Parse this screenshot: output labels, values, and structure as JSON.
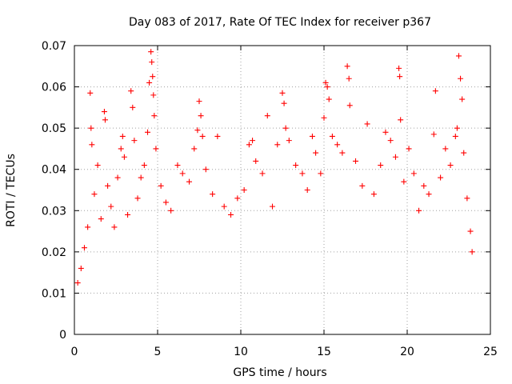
{
  "chart_data": {
    "type": "scatter",
    "title": "Day 083 of 2017, Rate Of TEC Index for receiver p367",
    "xlabel": "GPS time / hours",
    "ylabel": "ROTI / TECUs",
    "xlim": [
      0,
      25
    ],
    "ylim": [
      0,
      0.07
    ],
    "xticks": [
      "0",
      "5",
      "10",
      "15",
      "20",
      "25"
    ],
    "yticks": [
      "0",
      "0.01",
      "0.02",
      "0.03",
      "0.04",
      "0.05",
      "0.06",
      "0.07"
    ],
    "grid": true,
    "marker": "+",
    "color": "#ff0000",
    "series": [
      {
        "points": [
          [
            0.2,
            0.0125
          ],
          [
            0.4,
            0.016
          ],
          [
            0.6,
            0.021
          ],
          [
            0.8,
            0.026
          ],
          [
            0.95,
            0.0585
          ],
          [
            1.0,
            0.05
          ],
          [
            1.05,
            0.046
          ],
          [
            1.2,
            0.034
          ],
          [
            1.4,
            0.041
          ],
          [
            1.6,
            0.028
          ],
          [
            1.8,
            0.054
          ],
          [
            1.85,
            0.052
          ],
          [
            2.0,
            0.036
          ],
          [
            2.2,
            0.031
          ],
          [
            2.4,
            0.026
          ],
          [
            2.6,
            0.038
          ],
          [
            2.8,
            0.045
          ],
          [
            2.9,
            0.048
          ],
          [
            3.0,
            0.043
          ],
          [
            3.2,
            0.029
          ],
          [
            3.4,
            0.059
          ],
          [
            3.5,
            0.055
          ],
          [
            3.6,
            0.047
          ],
          [
            3.8,
            0.033
          ],
          [
            4.0,
            0.038
          ],
          [
            4.2,
            0.041
          ],
          [
            4.4,
            0.049
          ],
          [
            4.5,
            0.061
          ],
          [
            4.6,
            0.0685
          ],
          [
            4.65,
            0.066
          ],
          [
            4.7,
            0.0625
          ],
          [
            4.75,
            0.058
          ],
          [
            4.8,
            0.053
          ],
          [
            4.9,
            0.045
          ],
          [
            5.2,
            0.036
          ],
          [
            5.5,
            0.032
          ],
          [
            5.8,
            0.03
          ],
          [
            6.2,
            0.041
          ],
          [
            6.5,
            0.039
          ],
          [
            6.9,
            0.037
          ],
          [
            7.2,
            0.045
          ],
          [
            7.4,
            0.0495
          ],
          [
            7.5,
            0.0565
          ],
          [
            7.6,
            0.053
          ],
          [
            7.7,
            0.048
          ],
          [
            7.9,
            0.04
          ],
          [
            8.3,
            0.034
          ],
          [
            8.6,
            0.048
          ],
          [
            9.0,
            0.031
          ],
          [
            9.4,
            0.029
          ],
          [
            9.8,
            0.033
          ],
          [
            10.2,
            0.035
          ],
          [
            10.5,
            0.046
          ],
          [
            10.7,
            0.047
          ],
          [
            10.9,
            0.042
          ],
          [
            11.3,
            0.039
          ],
          [
            11.6,
            0.053
          ],
          [
            11.9,
            0.031
          ],
          [
            12.2,
            0.046
          ],
          [
            12.5,
            0.0585
          ],
          [
            12.6,
            0.056
          ],
          [
            12.7,
            0.05
          ],
          [
            12.9,
            0.047
          ],
          [
            13.3,
            0.041
          ],
          [
            13.7,
            0.039
          ],
          [
            14.0,
            0.035
          ],
          [
            14.3,
            0.048
          ],
          [
            14.5,
            0.044
          ],
          [
            14.8,
            0.039
          ],
          [
            15.0,
            0.0525
          ],
          [
            15.1,
            0.061
          ],
          [
            15.2,
            0.06
          ],
          [
            15.3,
            0.057
          ],
          [
            15.5,
            0.048
          ],
          [
            15.8,
            0.046
          ],
          [
            16.1,
            0.044
          ],
          [
            16.4,
            0.065
          ],
          [
            16.5,
            0.062
          ],
          [
            16.55,
            0.0555
          ],
          [
            16.9,
            0.042
          ],
          [
            17.3,
            0.036
          ],
          [
            17.6,
            0.051
          ],
          [
            18.0,
            0.034
          ],
          [
            18.4,
            0.041
          ],
          [
            18.7,
            0.049
          ],
          [
            19.0,
            0.047
          ],
          [
            19.3,
            0.043
          ],
          [
            19.5,
            0.0645
          ],
          [
            19.55,
            0.0625
          ],
          [
            19.6,
            0.052
          ],
          [
            19.8,
            0.037
          ],
          [
            20.1,
            0.045
          ],
          [
            20.4,
            0.039
          ],
          [
            20.7,
            0.03
          ],
          [
            21.0,
            0.036
          ],
          [
            21.3,
            0.034
          ],
          [
            21.6,
            0.0485
          ],
          [
            21.7,
            0.059
          ],
          [
            22.0,
            0.038
          ],
          [
            22.3,
            0.045
          ],
          [
            22.6,
            0.041
          ],
          [
            22.9,
            0.048
          ],
          [
            23.0,
            0.05
          ],
          [
            23.1,
            0.0675
          ],
          [
            23.2,
            0.062
          ],
          [
            23.3,
            0.057
          ],
          [
            23.4,
            0.044
          ],
          [
            23.6,
            0.033
          ],
          [
            23.8,
            0.025
          ],
          [
            23.9,
            0.02
          ]
        ]
      }
    ]
  }
}
